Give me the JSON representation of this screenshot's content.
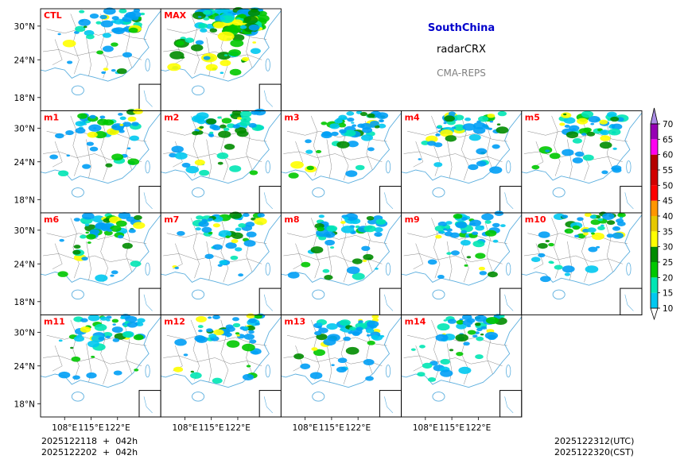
{
  "chart_data": {
    "type": "heatmap",
    "title": "SouthChina",
    "variable": "radarCRX",
    "subtitle": "CMA-REPS",
    "panels": [
      "CTL",
      "MAX",
      "m1",
      "m2",
      "m3",
      "m4",
      "m5",
      "m6",
      "m7",
      "m8",
      "m9",
      "m10",
      "m11",
      "m12",
      "m13",
      "m14"
    ],
    "lat_ticks": [
      "30°N",
      "24°N",
      "18°N"
    ],
    "lon_ticks": [
      "108°E",
      "115°E",
      "122°E"
    ],
    "colorbar": {
      "levels": [
        "10",
        "15",
        "20",
        "25",
        "30",
        "35",
        "40",
        "45",
        "50",
        "55",
        "60",
        "65",
        "70"
      ],
      "colors": [
        "#009ef5",
        "#00c8f0",
        "#00e6b4",
        "#00c800",
        "#008c00",
        "#ffff00",
        "#e6c800",
        "#ff9600",
        "#ff0000",
        "#d20000",
        "#b40000",
        "#ff00f0",
        "#9600b4",
        "#aa8ce6"
      ]
    }
  },
  "footer": {
    "init_utc": "2025122118  +  042h",
    "init_cst": "2025122202  +  042h",
    "valid_utc": "2025122312(UTC)",
    "valid_cst": "2025122320(CST)"
  },
  "colors": {
    "title": "#0000cc",
    "subtitle": "#808080",
    "panel_label": "#ff0000"
  }
}
